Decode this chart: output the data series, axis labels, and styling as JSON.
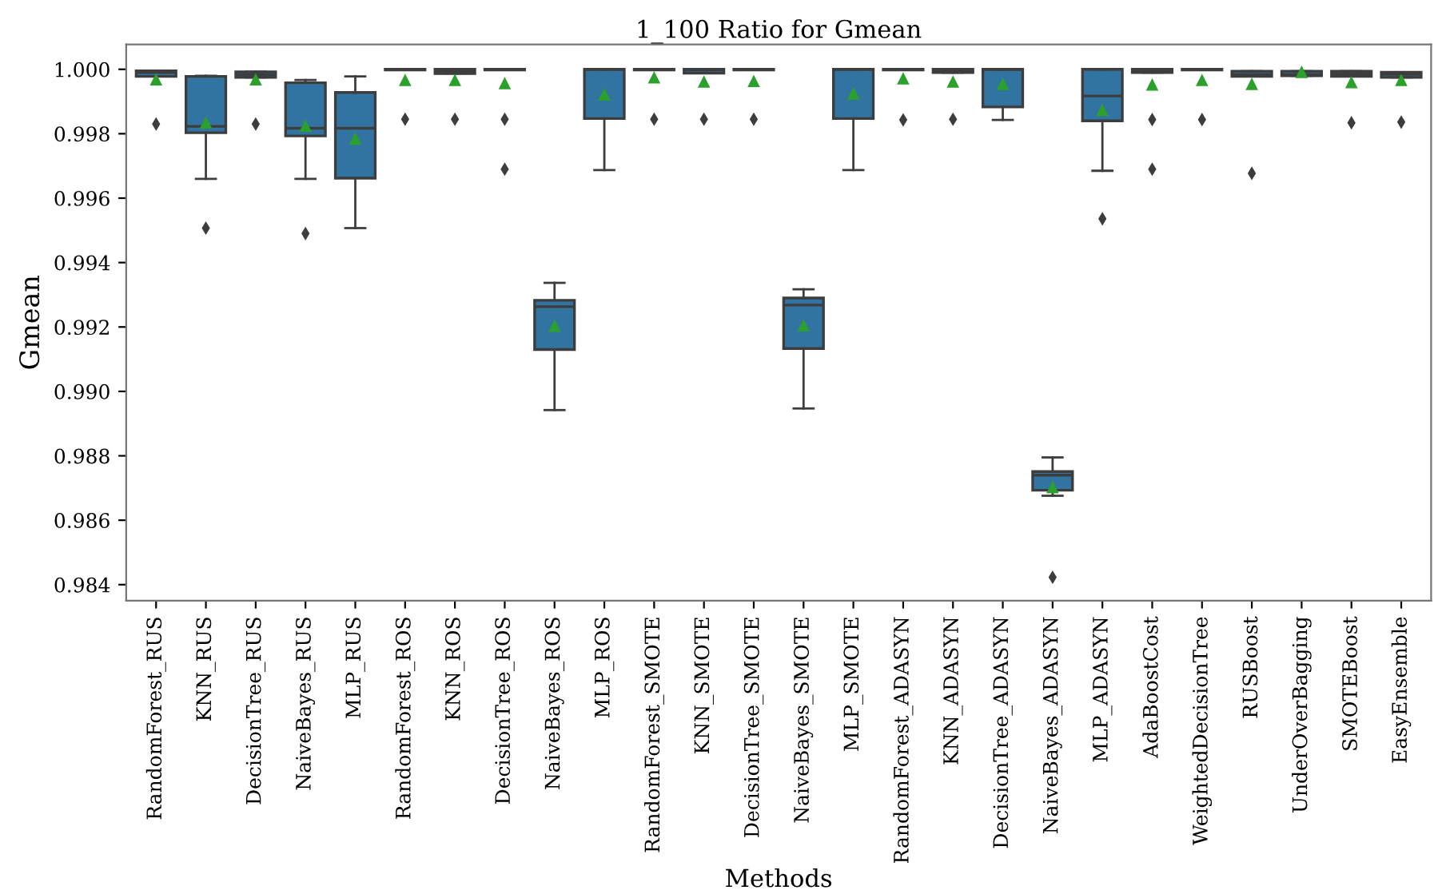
{
  "chart_data": {
    "type": "box",
    "title": "1_100 Ratio for Gmean",
    "xlabel": "Methods",
    "ylabel": "Gmean",
    "categories": [
      "RandomForest_RUS",
      "KNN_RUS",
      "DecisionTree_RUS",
      "NaiveBayes_RUS",
      "MLP_RUS",
      "RandomForest_ROS",
      "KNN_ROS",
      "DecisionTree_ROS",
      "NaiveBayes_ROS",
      "MLP_ROS",
      "RandomForest_SMOTE",
      "KNN_SMOTE",
      "DecisionTree_SMOTE",
      "NaiveBayes_SMOTE",
      "MLP_SMOTE",
      "RandomForest_ADASYN",
      "KNN_ADASYN",
      "DecisionTree_ADASYN",
      "NaiveBayes_ADASYN",
      "MLP_ADASYN",
      "AdaBoostCost",
      "WeightedDecisionTree",
      "RUSBoost",
      "UnderOverBagging",
      "SMOTEBoost",
      "EasyEnsemble"
    ],
    "color": "#3274a1",
    "boxes": [
      {
        "low": 0.99978,
        "q1": 0.99978,
        "median": 0.9999,
        "q3": 0.99995,
        "high": 0.99995,
        "mean": 0.99967,
        "outliers": [
          0.9983
        ]
      },
      {
        "low": 0.9966,
        "q1": 0.99803,
        "median": 0.99823,
        "q3": 0.99978,
        "high": 0.9998,
        "mean": 0.99833,
        "outliers": [
          0.99507
        ]
      },
      {
        "low": 0.99975,
        "q1": 0.99975,
        "median": 0.99983,
        "q3": 0.99992,
        "high": 0.99992,
        "mean": 0.99967,
        "outliers": [
          0.9983
        ]
      },
      {
        "low": 0.9966,
        "q1": 0.99793,
        "median": 0.99817,
        "q3": 0.99958,
        "high": 0.99967,
        "mean": 0.99823,
        "outliers": [
          0.9949
        ]
      },
      {
        "low": 0.99507,
        "q1": 0.99662,
        "median": 0.99817,
        "q3": 0.99928,
        "high": 0.99978,
        "mean": 0.99783
      },
      {
        "low": 0.99998,
        "q1": 0.99998,
        "median": 1.0,
        "q3": 1.0,
        "high": 1.0,
        "mean": 0.99965,
        "outliers": [
          0.99845
        ]
      },
      {
        "low": 0.99987,
        "q1": 0.99987,
        "median": 0.99995,
        "q3": 1.0,
        "high": 1.0,
        "mean": 0.99965,
        "outliers": [
          0.99845
        ]
      },
      {
        "low": 0.99998,
        "q1": 0.99998,
        "median": 1.0,
        "q3": 1.0,
        "high": 1.0,
        "mean": 0.99955,
        "outliers": [
          0.99845,
          0.9969
        ]
      },
      {
        "low": 0.98942,
        "q1": 0.9913,
        "median": 0.99263,
        "q3": 0.99283,
        "high": 0.99337,
        "mean": 0.99202
      },
      {
        "low": 0.99687,
        "q1": 0.99847,
        "median": 1.0,
        "q3": 1.0,
        "high": 1.0,
        "mean": 0.9992
      },
      {
        "low": 0.99998,
        "q1": 0.99998,
        "median": 1.0,
        "q3": 1.0,
        "high": 1.0,
        "mean": 0.99973,
        "outliers": [
          0.99845
        ]
      },
      {
        "low": 0.99988,
        "q1": 0.99988,
        "median": 0.99997,
        "q3": 1.0,
        "high": 1.0,
        "mean": 0.9996,
        "outliers": [
          0.99845
        ]
      },
      {
        "low": 0.99998,
        "q1": 0.99998,
        "median": 1.0,
        "q3": 1.0,
        "high": 1.0,
        "mean": 0.99962,
        "outliers": [
          0.99845
        ]
      },
      {
        "low": 0.98947,
        "q1": 0.99133,
        "median": 0.99268,
        "q3": 0.9929,
        "high": 0.99317,
        "mean": 0.99203
      },
      {
        "low": 0.99687,
        "q1": 0.99847,
        "median": 1.0,
        "q3": 1.0,
        "high": 1.0,
        "mean": 0.99923
      },
      {
        "low": 0.99998,
        "q1": 0.99998,
        "median": 1.0,
        "q3": 1.0,
        "high": 1.0,
        "mean": 0.9997,
        "outliers": [
          0.99843
        ]
      },
      {
        "low": 0.9999,
        "q1": 0.9999,
        "median": 0.99997,
        "q3": 1.0,
        "high": 1.0,
        "mean": 0.9996,
        "outliers": [
          0.99845
        ]
      },
      {
        "low": 0.99843,
        "q1": 0.99883,
        "median": 1.0,
        "q3": 1.0,
        "high": 1.0,
        "mean": 0.99953
      },
      {
        "low": 0.98676,
        "q1": 0.98693,
        "median": 0.9874,
        "q3": 0.98751,
        "high": 0.98795,
        "mean": 0.98701,
        "outliers": [
          0.98423
        ]
      },
      {
        "low": 0.99685,
        "q1": 0.9984,
        "median": 0.99917,
        "q3": 1.0,
        "high": 1.0,
        "mean": 0.99872,
        "outliers": [
          0.99536
        ]
      },
      {
        "low": 0.9999,
        "q1": 0.9999,
        "median": 0.99997,
        "q3": 1.0,
        "high": 1.0,
        "mean": 0.99951,
        "outliers": [
          0.99844,
          0.9969
        ]
      },
      {
        "low": 0.99998,
        "q1": 0.99998,
        "median": 1.0,
        "q3": 1.0,
        "high": 1.0,
        "mean": 0.99965,
        "outliers": [
          0.99844
        ]
      },
      {
        "low": 0.99978,
        "q1": 0.99978,
        "median": 0.99984,
        "q3": 0.99994,
        "high": 0.99994,
        "mean": 0.99953,
        "outliers": [
          0.99677
        ]
      },
      {
        "low": 0.9998,
        "q1": 0.9998,
        "median": 0.99984,
        "q3": 0.99994,
        "high": 0.99994,
        "mean": 0.9999
      },
      {
        "low": 0.99978,
        "q1": 0.99978,
        "median": 0.99986,
        "q3": 0.99994,
        "high": 0.99994,
        "mean": 0.99958,
        "outliers": [
          0.99834
        ]
      },
      {
        "low": 0.99975,
        "q1": 0.99975,
        "median": 0.99984,
        "q3": 0.99991,
        "high": 0.99991,
        "mean": 0.99965,
        "outliers": [
          0.99836
        ]
      }
    ],
    "ylim": [
      0.9835,
      1.00077
    ],
    "yticks": [
      {
        "value": 0.984,
        "label": "0.984"
      },
      {
        "value": 0.986,
        "label": "0.986"
      },
      {
        "value": 0.988,
        "label": "0.988"
      },
      {
        "value": 0.99,
        "label": "0.990"
      },
      {
        "value": 0.992,
        "label": "0.992"
      },
      {
        "value": 0.994,
        "label": "0.994"
      },
      {
        "value": 0.996,
        "label": "0.996"
      },
      {
        "value": 0.998,
        "label": "0.998"
      },
      {
        "value": 1.0,
        "label": "1.000"
      }
    ],
    "grid": false,
    "legend": false
  }
}
